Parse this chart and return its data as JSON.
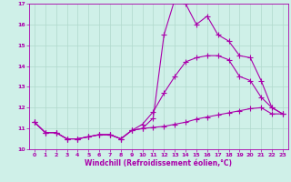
{
  "xlabel": "Windchill (Refroidissement éolien,°C)",
  "background_color": "#cff0e8",
  "grid_color": "#b0d8cc",
  "line_color": "#aa00aa",
  "x_min": -0.5,
  "x_max": 23.5,
  "y_min": 10,
  "y_max": 17,
  "line1_x": [
    0,
    1,
    2,
    3,
    4,
    5,
    6,
    7,
    8,
    9,
    10,
    11,
    12,
    13,
    14,
    15,
    16,
    17,
    18,
    19,
    20,
    21,
    22,
    23
  ],
  "line1_y": [
    11.3,
    10.8,
    10.8,
    10.5,
    10.5,
    10.6,
    10.7,
    10.7,
    10.5,
    10.9,
    11.0,
    11.5,
    15.5,
    17.2,
    17.0,
    16.0,
    16.4,
    15.5,
    15.2,
    14.5,
    14.4,
    13.3,
    12.0,
    11.7
  ],
  "line2_x": [
    0,
    1,
    2,
    3,
    4,
    5,
    6,
    7,
    8,
    9,
    10,
    11,
    12,
    13,
    14,
    15,
    16,
    17,
    18,
    19,
    20,
    21,
    22,
    23
  ],
  "line2_y": [
    11.3,
    10.8,
    10.8,
    10.5,
    10.5,
    10.6,
    10.7,
    10.7,
    10.5,
    10.9,
    11.2,
    11.8,
    12.7,
    13.5,
    14.2,
    14.4,
    14.5,
    14.5,
    14.3,
    13.5,
    13.3,
    12.5,
    12.0,
    11.7
  ],
  "line3_x": [
    0,
    1,
    2,
    3,
    4,
    5,
    6,
    7,
    8,
    9,
    10,
    11,
    12,
    13,
    14,
    15,
    16,
    17,
    18,
    19,
    20,
    21,
    22,
    23
  ],
  "line3_y": [
    11.3,
    10.8,
    10.8,
    10.5,
    10.5,
    10.6,
    10.7,
    10.7,
    10.5,
    10.9,
    11.0,
    11.05,
    11.1,
    11.2,
    11.3,
    11.45,
    11.55,
    11.65,
    11.75,
    11.85,
    11.95,
    12.0,
    11.7,
    11.7
  ]
}
